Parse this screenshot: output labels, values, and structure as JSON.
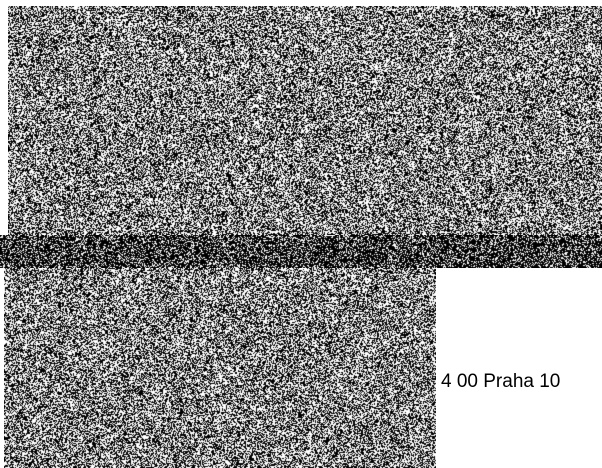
{
  "noise_regions": {
    "top": {
      "icon": "noise-image",
      "density": 0.5,
      "seed": 17
    },
    "strip": {
      "icon": "noise-image",
      "density": 0.72,
      "seed": 91
    },
    "bottom": {
      "icon": "noise-image",
      "density": 0.5,
      "seed": 43
    }
  },
  "colors": {
    "ink": "#000000",
    "paper": "#ffffff"
  },
  "address_line": "4 00 Praha 10"
}
